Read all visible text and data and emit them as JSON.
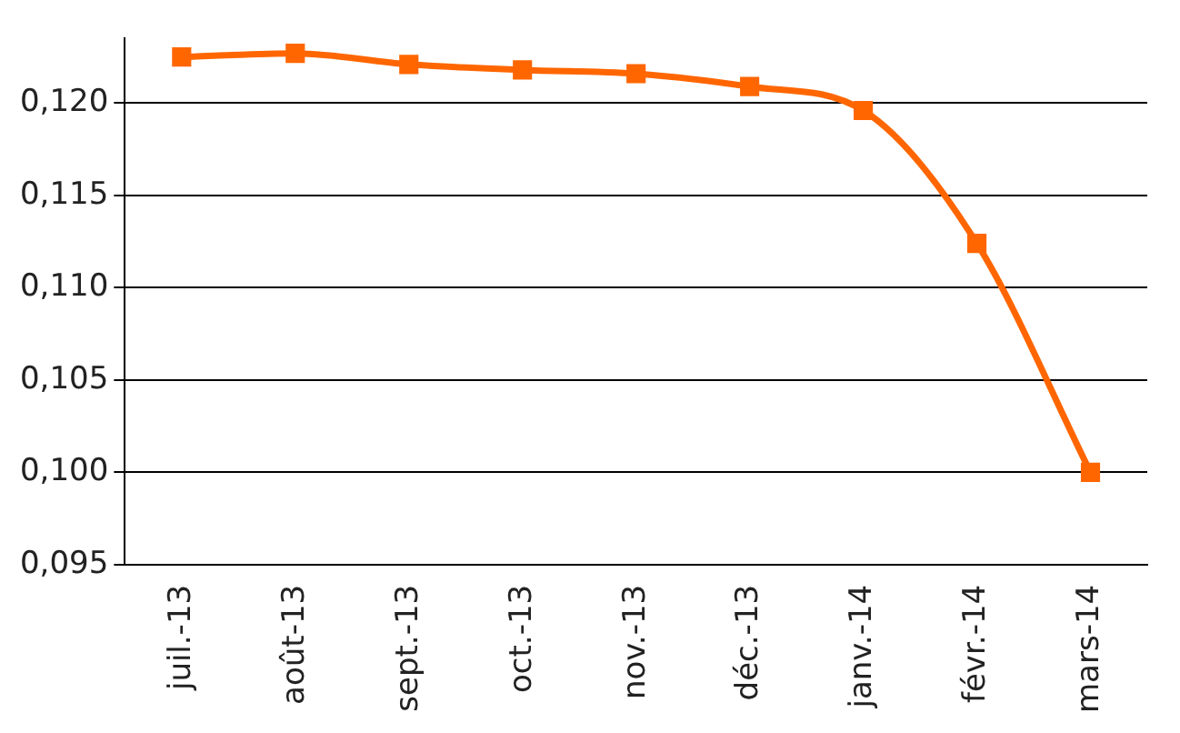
{
  "chart_data": {
    "type": "line",
    "categories": [
      "juil.-13",
      "août-13",
      "sept.-13",
      "oct.-13",
      "nov.-13",
      "déc.-13",
      "janv.-14",
      "févr.-14",
      "mars-14"
    ],
    "series": [
      {
        "color": "#ff6600",
        "values": [
          0.1225,
          0.1227,
          0.1221,
          0.1218,
          0.1216,
          0.1209,
          0.1196,
          0.1124,
          0.1
        ]
      }
    ],
    "ylim": [
      0.095,
      0.1235
    ],
    "yticks": [
      {
        "value": 0.095,
        "label": "0,095"
      },
      {
        "value": 0.1,
        "label": "0,100"
      },
      {
        "value": 0.105,
        "label": "0,105"
      },
      {
        "value": 0.11,
        "label": "0,110"
      },
      {
        "value": 0.115,
        "label": "0,115"
      },
      {
        "value": 0.12,
        "label": "0,120"
      }
    ],
    "grid": "y",
    "legend": false,
    "marker": "square",
    "line_style": "solid"
  }
}
